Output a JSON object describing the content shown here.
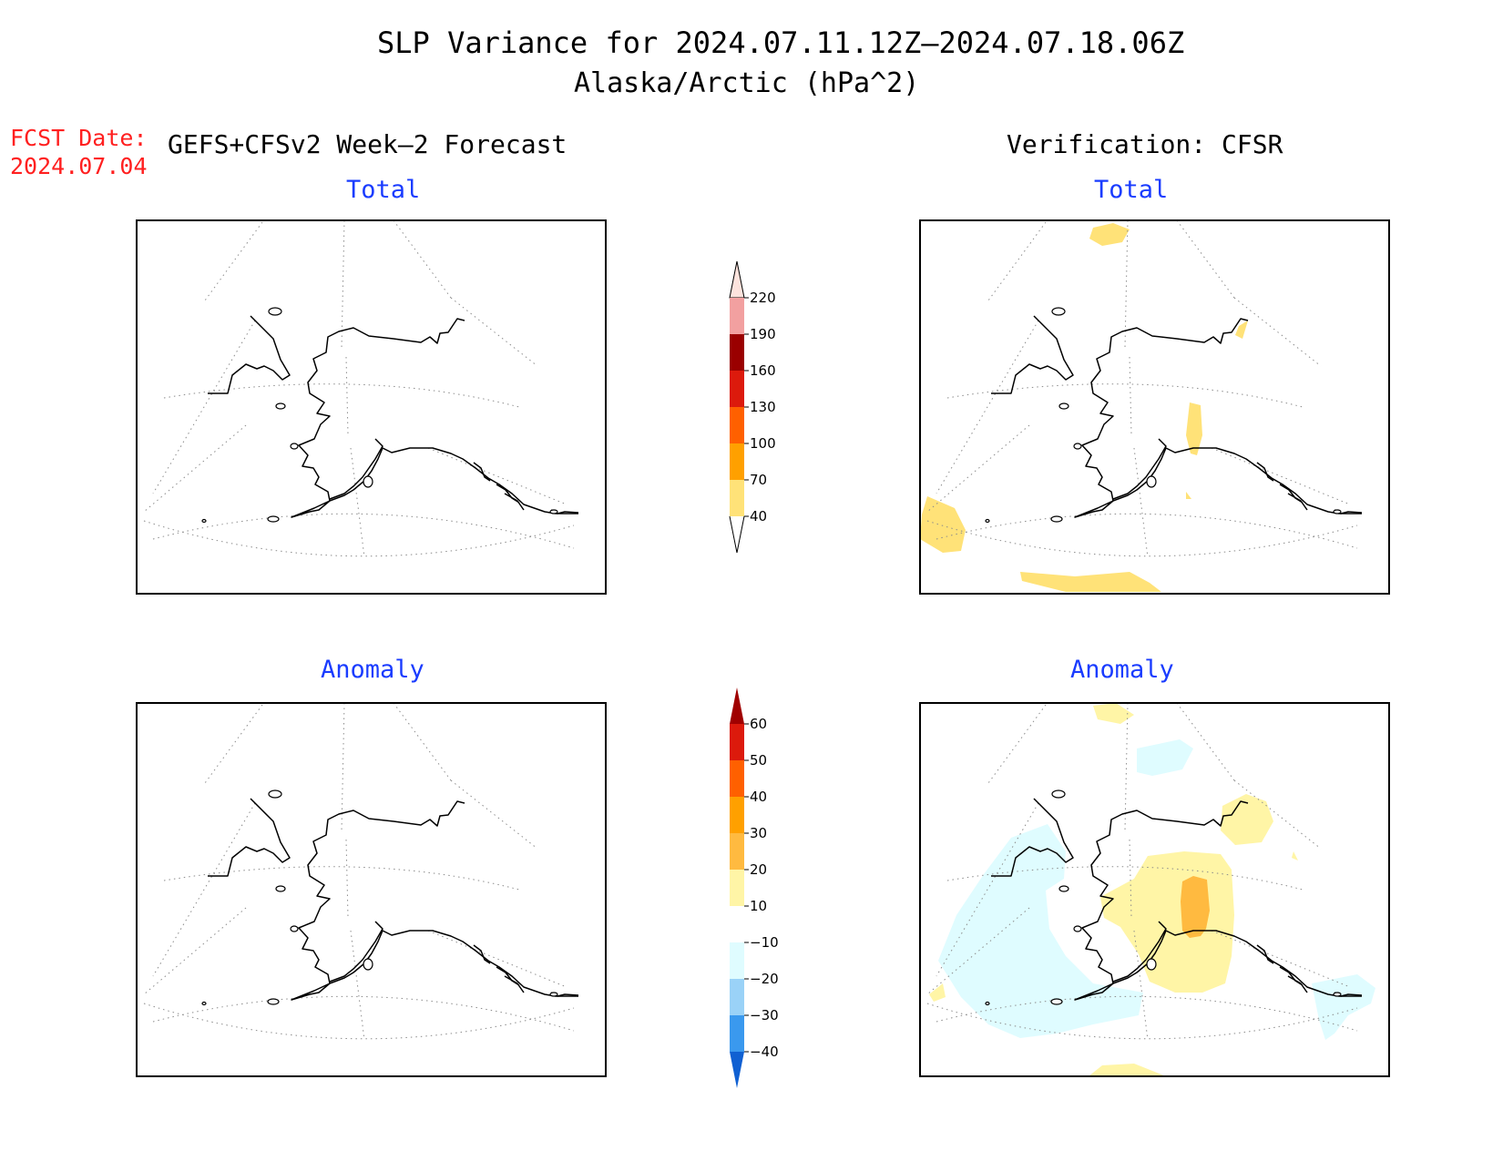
{
  "title": "SLP Variance for 2024.07.11.12Z–2024.07.18.06Z",
  "subtitle": "Alaska/Arctic (hPa^2)",
  "fcst_date_label": "FCST Date:",
  "fcst_date_value": "2024.07.04",
  "left_header": "GEFS+CFSv2 Week–2 Forecast",
  "right_header": "Verification: CFSR",
  "panels": {
    "forecast_total": "Total",
    "verification_total": "Total",
    "forecast_anomaly": "Anomaly",
    "verification_anomaly": "Anomaly"
  },
  "total_colorbar": {
    "labels": [
      "220",
      "190",
      "160",
      "130",
      "100",
      "70",
      "40"
    ],
    "colors": [
      "#fde3dd",
      "#f2a0a0",
      "#9a0000",
      "#dc1a0c",
      "#ff6000",
      "#ffa000",
      "#ffe278"
    ]
  },
  "anomaly_colorbar": {
    "labels": [
      "60",
      "50",
      "40",
      "30",
      "20",
      "10",
      "−10",
      "−20",
      "−30",
      "−40"
    ],
    "colors": [
      "#a00000",
      "#dc1a0c",
      "#ff6000",
      "#ffa000",
      "#ffba40",
      "#fff5a6",
      "#ffffff",
      "#dffcff",
      "#9ad2f7",
      "#3a99ee",
      "#1060d2"
    ]
  },
  "colors": {
    "title_text": "#000000",
    "fcst_text": "#ff2020",
    "panel_title": "#1a3cff"
  }
}
